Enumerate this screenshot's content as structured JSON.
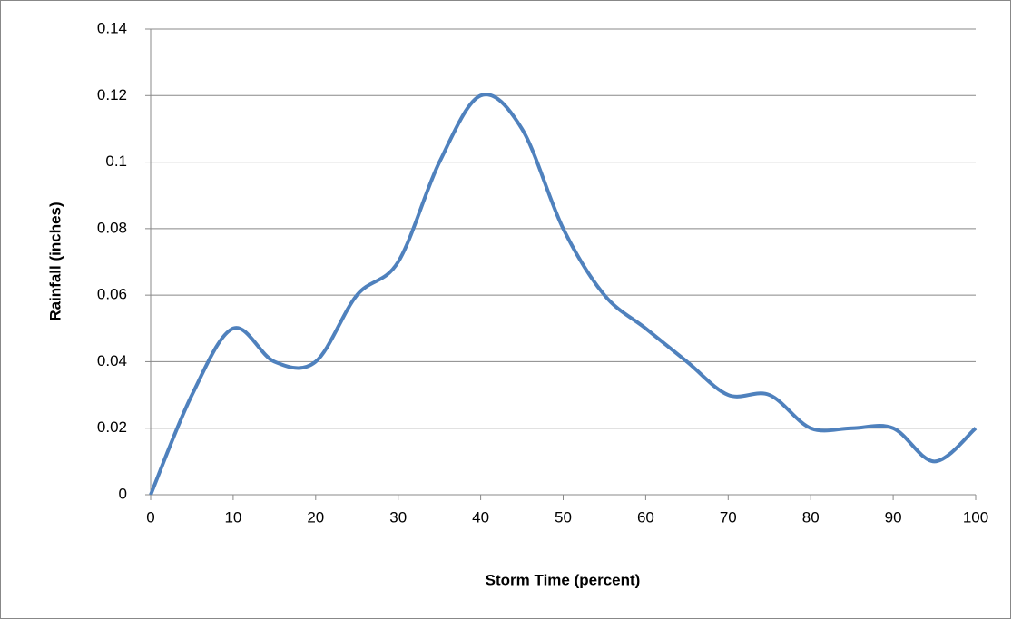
{
  "chart_data": {
    "type": "line",
    "x_label": "Storm Time (percent)",
    "y_label": "Rainfall (inches)",
    "x": [
      0,
      5,
      10,
      15,
      20,
      25,
      30,
      35,
      40,
      45,
      50,
      55,
      60,
      65,
      70,
      75,
      80,
      85,
      90,
      95,
      100
    ],
    "series": [
      {
        "color": "#4f81bd",
        "values": [
          0,
          0.03,
          0.05,
          0.04,
          0.04,
          0.06,
          0.07,
          0.1,
          0.12,
          0.11,
          0.08,
          0.06,
          0.05,
          0.04,
          0.03,
          0.03,
          0.02,
          0.02,
          0.02,
          0.01,
          0.02
        ]
      }
    ],
    "xlim": [
      0,
      100
    ],
    "xticks": [
      0,
      10,
      20,
      30,
      40,
      50,
      60,
      70,
      80,
      90,
      100
    ],
    "ylim": [
      0,
      0.14
    ],
    "yticks": [
      0,
      0.02,
      0.04,
      0.06,
      0.08,
      0.1,
      0.12,
      0.14
    ],
    "grid": true,
    "smooth": true
  }
}
